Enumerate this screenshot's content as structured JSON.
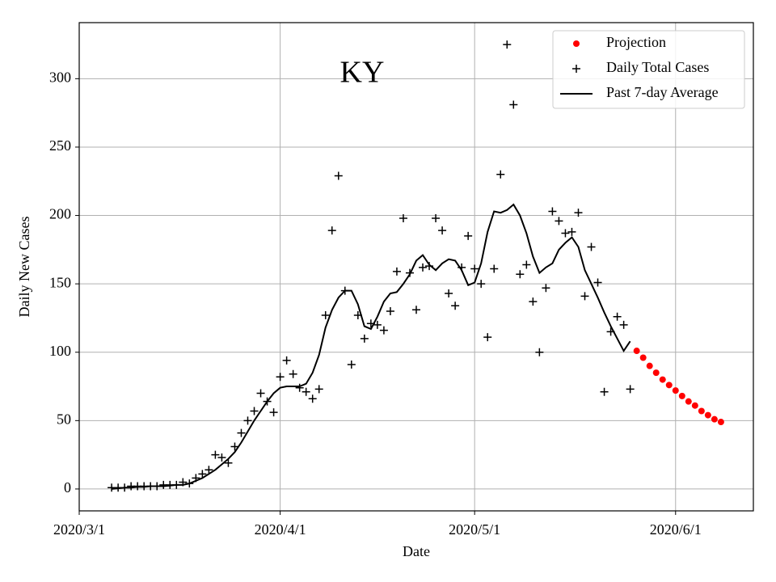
{
  "chart_data": {
    "type": "line",
    "title": "KY",
    "x_label": "Date",
    "y_label": "Daily New Cases",
    "xlim": [
      "2020/3/1",
      "2020/6/13"
    ],
    "xticks": [
      "2020/3/1",
      "2020/4/1",
      "2020/5/1",
      "2020/6/1"
    ],
    "ylim": [
      -16,
      341
    ],
    "yticks": [
      0,
      50,
      100,
      150,
      200,
      250,
      300
    ],
    "grid": true,
    "legend": "upper right",
    "x": [
      "2020/3/6",
      "2020/3/7",
      "2020/3/8",
      "2020/3/9",
      "2020/3/10",
      "2020/3/11",
      "2020/3/12",
      "2020/3/13",
      "2020/3/14",
      "2020/3/15",
      "2020/3/16",
      "2020/3/17",
      "2020/3/18",
      "2020/3/19",
      "2020/3/20",
      "2020/3/21",
      "2020/3/22",
      "2020/3/23",
      "2020/3/24",
      "2020/3/25",
      "2020/3/26",
      "2020/3/27",
      "2020/3/28",
      "2020/3/29",
      "2020/3/30",
      "2020/3/31",
      "2020/4/1",
      "2020/4/2",
      "2020/4/3",
      "2020/4/4",
      "2020/4/5",
      "2020/4/6",
      "2020/4/7",
      "2020/4/8",
      "2020/4/9",
      "2020/4/10",
      "2020/4/11",
      "2020/4/12",
      "2020/4/13",
      "2020/4/14",
      "2020/4/15",
      "2020/4/16",
      "2020/4/17",
      "2020/4/18",
      "2020/4/19",
      "2020/4/20",
      "2020/4/21",
      "2020/4/22",
      "2020/4/23",
      "2020/4/24",
      "2020/4/25",
      "2020/4/26",
      "2020/4/27",
      "2020/4/28",
      "2020/4/29",
      "2020/4/30",
      "2020/5/1",
      "2020/5/2",
      "2020/5/3",
      "2020/5/4",
      "2020/5/5",
      "2020/5/6",
      "2020/5/7",
      "2020/5/8",
      "2020/5/9",
      "2020/5/10",
      "2020/5/11",
      "2020/5/12",
      "2020/5/13",
      "2020/5/14",
      "2020/5/15",
      "2020/5/16",
      "2020/5/17",
      "2020/5/18",
      "2020/5/19",
      "2020/5/20",
      "2020/5/21",
      "2020/5/22",
      "2020/5/23",
      "2020/5/24",
      "2020/5/25"
    ],
    "series": [
      {
        "name": "Projection",
        "color": "#ff0000",
        "marker": "dot",
        "x": [
          "2020/5/26",
          "2020/5/27",
          "2020/5/28",
          "2020/5/29",
          "2020/5/30",
          "2020/5/31",
          "2020/6/1",
          "2020/6/2",
          "2020/6/3",
          "2020/6/4",
          "2020/6/5",
          "2020/6/6",
          "2020/6/7",
          "2020/6/8"
        ],
        "values": [
          101,
          96,
          90,
          85,
          80,
          76,
          72,
          68,
          64,
          61,
          57,
          54,
          51,
          49
        ]
      },
      {
        "name": "Daily Total Cases",
        "color": "#000000",
        "marker": "plus",
        "values": [
          1,
          1,
          1,
          2,
          2,
          2,
          2,
          2,
          3,
          3,
          3,
          5,
          4,
          8,
          11,
          14,
          25,
          23,
          19,
          31,
          41,
          50,
          57,
          70,
          64,
          56,
          82,
          94,
          84,
          74,
          71,
          66,
          73,
          127,
          189,
          229,
          145,
          91,
          127,
          110,
          121,
          120,
          116,
          130,
          159,
          198,
          158,
          131,
          162,
          163,
          198,
          189,
          143,
          134,
          162,
          185,
          161,
          150,
          111,
          161,
          230,
          325,
          281,
          157,
          164,
          137,
          100,
          147,
          203,
          196,
          187,
          188,
          202,
          141,
          177,
          151,
          71,
          115,
          126,
          120,
          73
        ]
      },
      {
        "name": "Past 7-day Average",
        "color": "#000000",
        "marker": "line",
        "values": [
          0,
          0.5,
          1,
          1,
          1.5,
          1.5,
          2,
          2,
          2,
          2.5,
          3,
          3,
          4,
          6,
          8,
          11,
          14,
          18,
          22,
          27,
          34,
          42,
          50,
          57,
          64,
          70,
          74,
          75,
          75,
          75,
          77,
          85,
          98,
          118,
          131,
          140,
          145,
          145,
          135,
          119,
          117,
          126,
          137,
          143,
          144,
          150,
          157,
          167,
          171,
          164,
          160,
          165,
          168,
          167,
          160,
          149,
          151,
          165,
          188,
          203,
          202,
          204,
          208,
          200,
          187,
          170,
          158,
          162,
          165,
          175,
          180,
          184,
          177,
          160,
          150,
          140,
          129,
          119,
          110,
          101,
          108
        ]
      }
    ]
  }
}
